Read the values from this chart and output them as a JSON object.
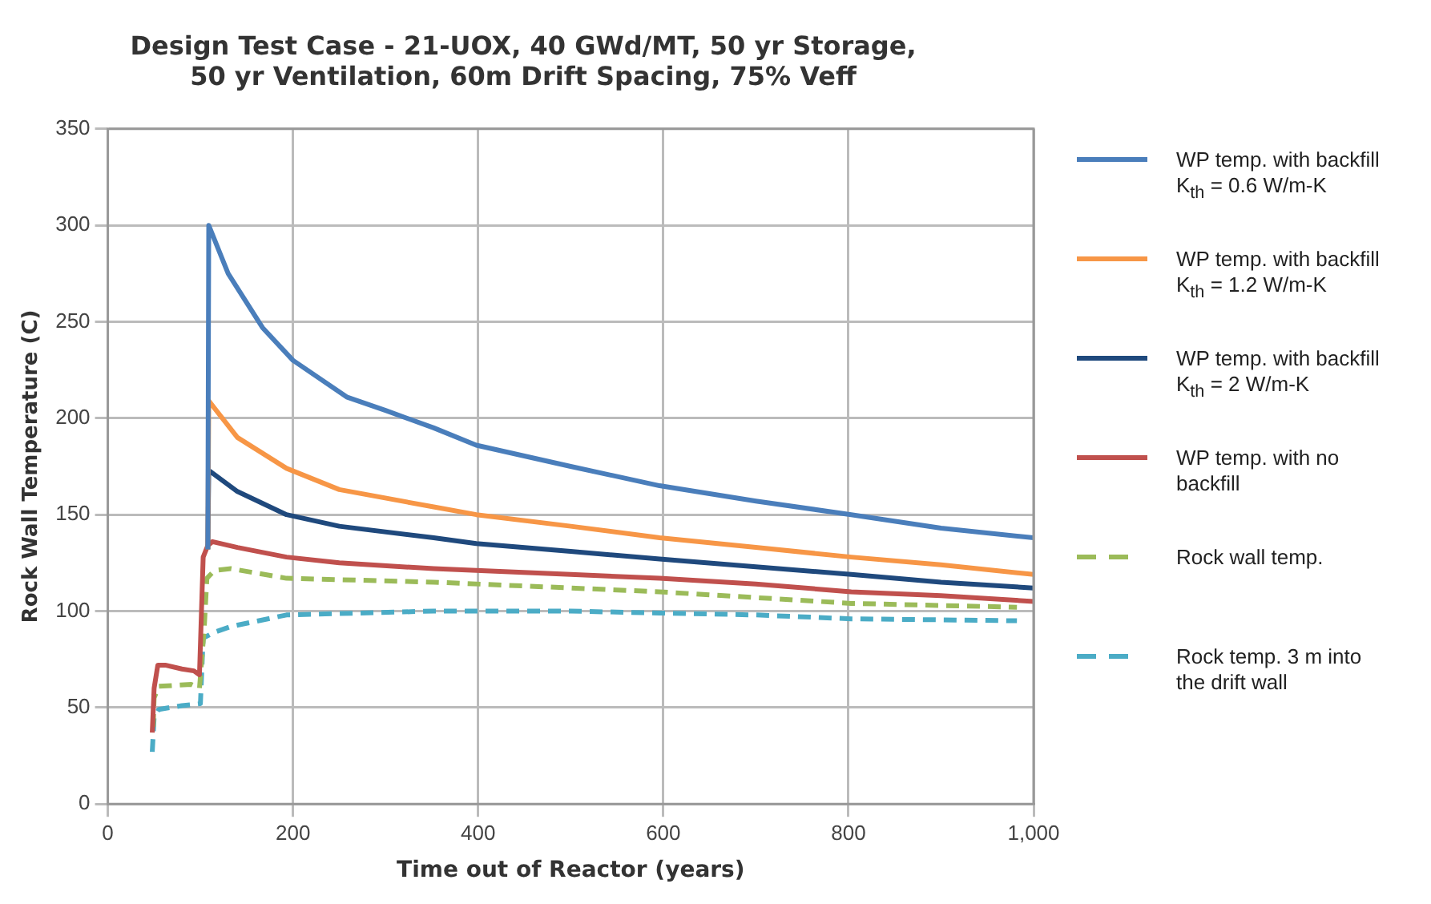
{
  "chart_data": {
    "type": "line",
    "title": "Design Test Case - 21-UOX, 40 GWd/MT, 50 yr Storage,\n50 yr Ventilation, 60m Drift Spacing, 75% Veff",
    "xlabel": "Time out of Reactor (years)",
    "ylabel": "Rock Wall Temperature (C)",
    "xlim": [
      0,
      1000
    ],
    "ylim": [
      0,
      350
    ],
    "xticks": [
      0,
      200,
      400,
      600,
      800,
      {
        "value": 1000,
        "label": "1,000"
      }
    ],
    "yticks": [
      0,
      50,
      100,
      150,
      200,
      250,
      300,
      350
    ],
    "grid": true,
    "legend": "right",
    "marker": "none",
    "series": [
      {
        "name": "WP temp. with backfill K$_{th}$ = 0.6 W/m-K",
        "color": "#4a7ebb",
        "line_style": "solid",
        "x": [
          108,
          109,
          130,
          167,
          200,
          258,
          300,
          352,
          398,
          500,
          596,
          700,
          803,
          900,
          1000
        ],
        "values": [
          132,
          300,
          275,
          247,
          230,
          211,
          204,
          195,
          186,
          175,
          165,
          157,
          150,
          143,
          138
        ]
      },
      {
        "name": "WP temp. with backfill K$_{th}$ = 1.2 W/m-K",
        "color": "#f79646",
        "line_style": "solid",
        "x": [
          108,
          109,
          140,
          193,
          250,
          352,
          398,
          500,
          596,
          700,
          803,
          900,
          1000
        ],
        "values": [
          132,
          209,
          190,
          174,
          163,
          154,
          150,
          144,
          138,
          133,
          128,
          124,
          119
        ]
      },
      {
        "name": "WP temp. with backfill K$_{th}$ = 2 W/m-K",
        "color": "#1f497d",
        "line_style": "solid",
        "x": [
          108,
          109,
          140,
          193,
          250,
          352,
          398,
          500,
          596,
          700,
          803,
          900,
          1000
        ],
        "values": [
          132,
          173,
          162,
          150,
          144,
          138,
          135,
          131,
          127,
          123,
          119,
          115,
          112
        ]
      },
      {
        "name": "WP temp. with no backfill",
        "color": "#c0504d",
        "line_style": "solid",
        "x": [
          48,
          50,
          54,
          62,
          80,
          93,
          99,
          103,
          108,
          113,
          140,
          193,
          250,
          352,
          500,
          596,
          700,
          803,
          900,
          1000
        ],
        "values": [
          37,
          60,
          72,
          72,
          70,
          69,
          67,
          128,
          134,
          136,
          133,
          128,
          125,
          122,
          119,
          117,
          114,
          110,
          108,
          105
        ]
      },
      {
        "name": "Rock wall temp.",
        "color": "#9bbb59",
        "line_style": "dashed",
        "x": [
          49,
          50,
          55,
          90,
          99,
          104,
          107,
          115,
          133,
          193,
          352,
          500,
          596,
          700,
          803,
          982
        ],
        "values": [
          40,
          55,
          61,
          62,
          60,
          90,
          117,
          121,
          122,
          117,
          115,
          112,
          110,
          107,
          104,
          102
        ]
      },
      {
        "name": "Rock temp. 3 m into the drift wall",
        "color": "#4bacc6",
        "line_style": "dashed",
        "x": [
          48,
          50,
          55,
          80,
          100,
          103,
          115,
          133,
          193,
          352,
          500,
          596,
          700,
          803,
          982
        ],
        "values": [
          27,
          45,
          49,
          51,
          52,
          86,
          89,
          92,
          98,
          100,
          100,
          99,
          98,
          96,
          95
        ]
      }
    ]
  }
}
